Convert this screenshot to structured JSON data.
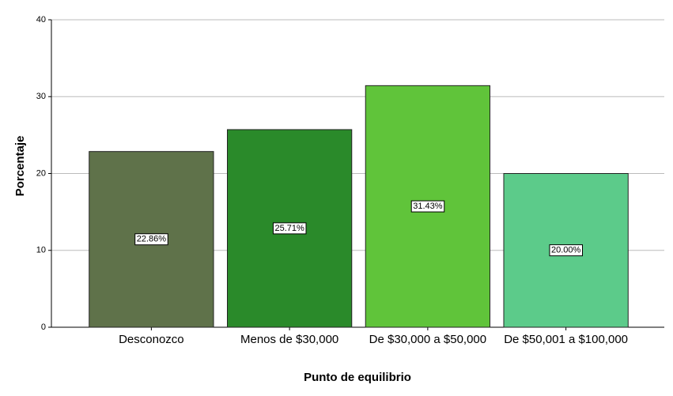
{
  "chart_data": {
    "type": "bar",
    "x_label": "Punto de equilibrio",
    "y_label": "Porcentaje",
    "categories": [
      "Desconozco",
      "Menos de $30,000",
      "De $30,000 a $50,000",
      "De $50,001 a $100,000"
    ],
    "values": [
      22.86,
      25.71,
      31.43,
      20.0
    ],
    "value_labels": [
      "22.86%",
      "25.71%",
      "31.43%",
      "20.00%"
    ],
    "colors": [
      "#5f724a",
      "#2a8a2a",
      "#60c43a",
      "#5ccb8a"
    ],
    "ylim": [
      0,
      40
    ],
    "yticks": [
      0,
      10,
      20,
      30,
      40
    ],
    "grid": true
  }
}
